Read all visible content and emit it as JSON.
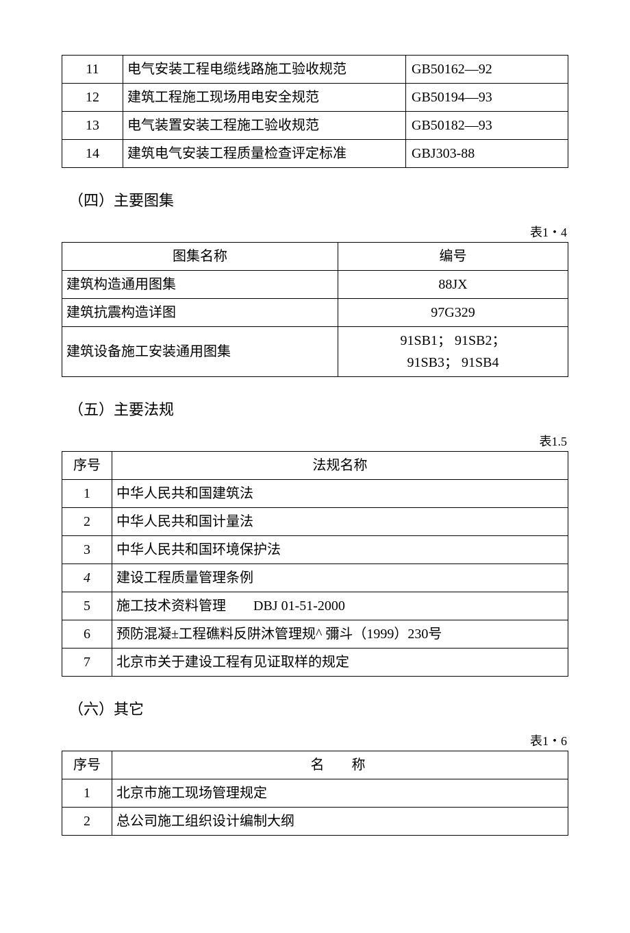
{
  "table1": {
    "rows": [
      {
        "no": "11",
        "name": "电气安装工程电缆线路施工验收规范",
        "code": "GB50162—92"
      },
      {
        "no": "12",
        "name": "建筑工程施工现场用电安全规范",
        "code": "GB50194—93"
      },
      {
        "no": "13",
        "name": "电气装置安装工程施工验收规范",
        "code": "GB50182—93"
      },
      {
        "no": "14",
        "name": "建筑电气安装工程质量检查评定标准",
        "code": "GBJ303-88"
      }
    ]
  },
  "section4": {
    "title": "（四）主要图集"
  },
  "table2": {
    "caption": "表1・4",
    "headers": {
      "name": "图集名称",
      "code": "编号"
    },
    "rows": [
      {
        "name": "建筑构造通用图集",
        "code": "88JX"
      },
      {
        "name": "建筑抗震构造详图",
        "code": "97G329"
      },
      {
        "name": "建筑设备施工安装通用图集",
        "code": "91SB1；  91SB2；\n91SB3；  91SB4"
      }
    ]
  },
  "section5": {
    "title": "（五）主要法规"
  },
  "table3": {
    "caption": "表1.5",
    "headers": {
      "no": "序号",
      "name": "法规名称"
    },
    "rows": [
      {
        "no": "1",
        "name": "中华人民共和国建筑法"
      },
      {
        "no": "2",
        "name": "中华人民共和国计量法"
      },
      {
        "no": "3",
        "name": "中华人民共和国环境保护法"
      },
      {
        "no": "4",
        "name": "建设工程质量管理条例",
        "italic": true
      },
      {
        "no": "5",
        "name": "施工技术资料管理　　DBJ 01-51-2000"
      },
      {
        "no": "6",
        "name": "预防混凝±工程礁料反阱沐管理规^  彌斗（1999）230号"
      },
      {
        "no": "7",
        "name": "北京市关于建设工程有见证取样的规定"
      }
    ]
  },
  "section6": {
    "title": "（六）其它"
  },
  "table4": {
    "caption": "表1・6",
    "headers": {
      "no": "序号",
      "name": "名称"
    },
    "rows": [
      {
        "no": "1",
        "name": "北京市施工现场管理规定"
      },
      {
        "no": "2",
        "name": "总公司施工组织设计编制大纲"
      }
    ]
  }
}
